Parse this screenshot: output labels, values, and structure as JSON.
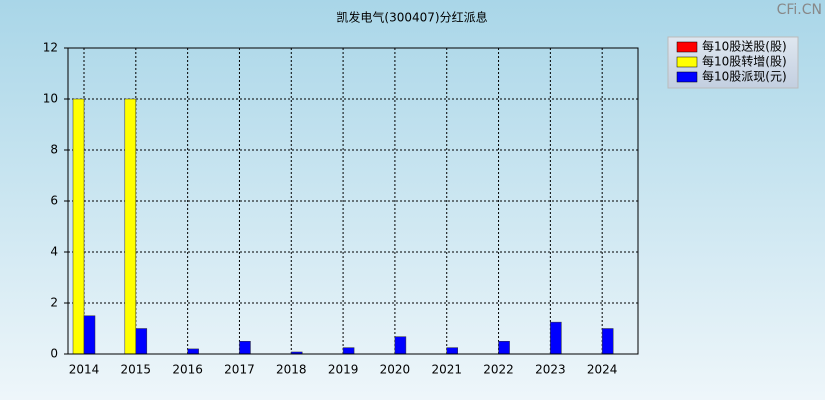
{
  "chart_data": {
    "type": "bar",
    "title": "凯发电气(300407)分红派息",
    "watermark": "CFi.CN",
    "categories": [
      "2014",
      "2015",
      "2016",
      "2017",
      "2018",
      "2019",
      "2020",
      "2021",
      "2022",
      "2023",
      "2024"
    ],
    "series": [
      {
        "name": "每10股送股(股)",
        "color": "#ff0000",
        "values": [
          0,
          0,
          0,
          0,
          0,
          0,
          0,
          0,
          0,
          0,
          0
        ]
      },
      {
        "name": "每10股转增(股)",
        "color": "#ffff00",
        "values": [
          10,
          10,
          0,
          0,
          0,
          0,
          0,
          0,
          0,
          0,
          0
        ]
      },
      {
        "name": "每10股派现(元)",
        "color": "#0000ff",
        "values": [
          1.5,
          1,
          0.2,
          0.5,
          0.08,
          0.25,
          0.68,
          0.25,
          0.5,
          1.25,
          1
        ]
      }
    ],
    "ylim": [
      0,
      12
    ],
    "yticks": [
      0,
      2,
      4,
      6,
      8,
      10,
      12
    ],
    "grid": true,
    "legend": "top-right"
  }
}
